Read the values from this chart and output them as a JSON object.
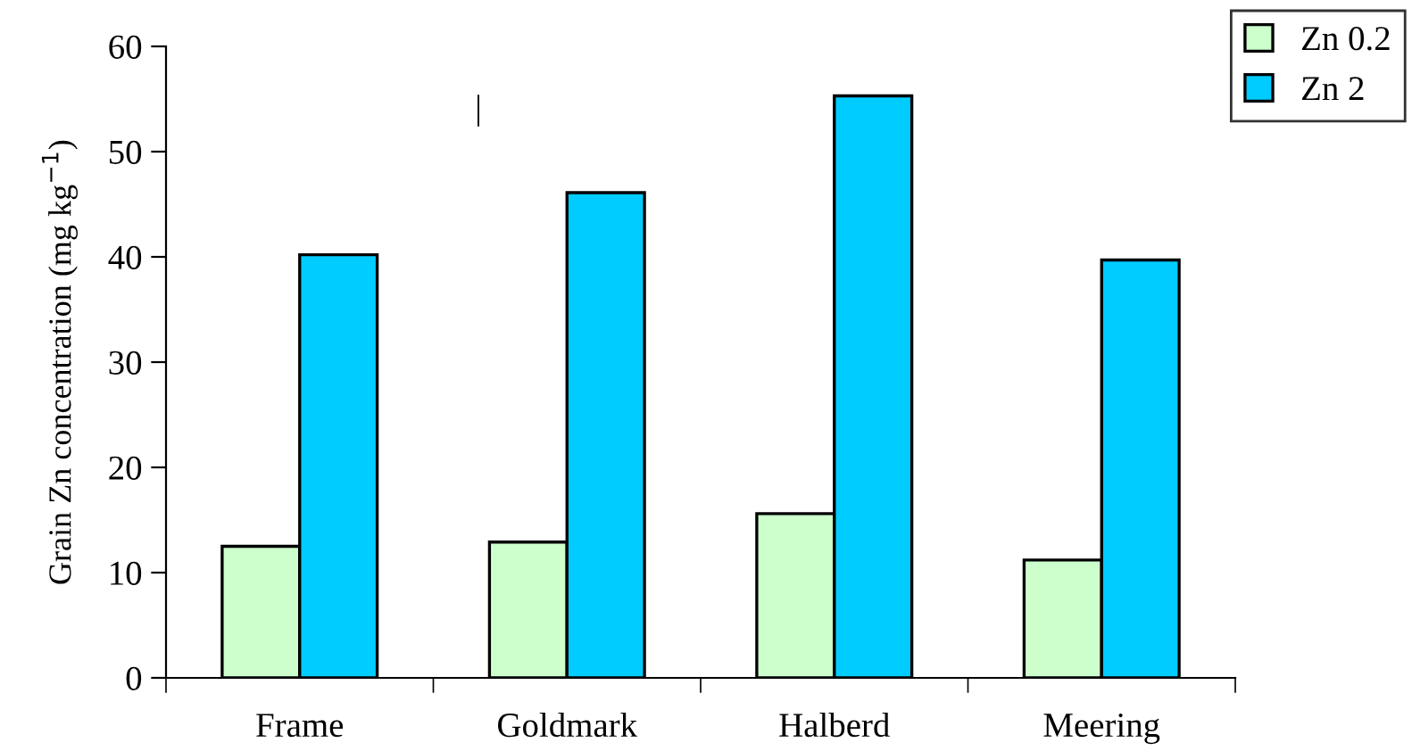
{
  "chart_data": {
    "type": "bar",
    "ylabel": "Grain Zn concentration (mg kg$^{−1}$)",
    "categories": [
      "Frame",
      "Goldmark",
      "Halberd",
      "Meering"
    ],
    "series": [
      {
        "name": "Zn 0.2",
        "color": "#ccffcc",
        "values": [
          12.5,
          12.9,
          15.6,
          11.2
        ]
      },
      {
        "name": "Zn 2",
        "color": "#00ccff",
        "values": [
          40.2,
          46.1,
          55.3,
          39.7
        ]
      }
    ],
    "ylim": [
      0,
      60
    ],
    "yticks": [
      0,
      10,
      20,
      30,
      40,
      50,
      60
    ],
    "grid": false,
    "legend": "top right",
    "annotations": [
      "|"
    ]
  }
}
